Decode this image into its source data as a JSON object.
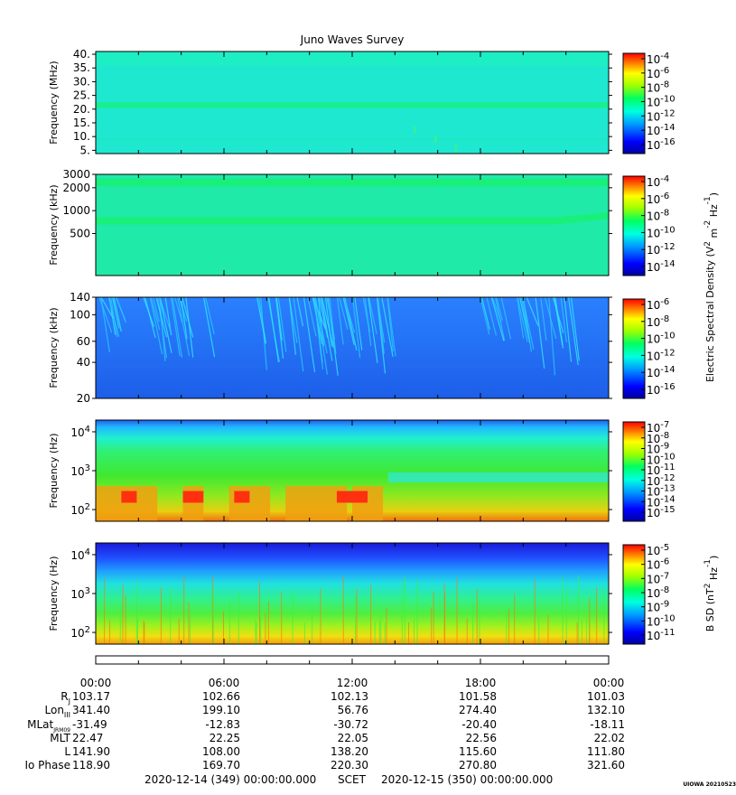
{
  "title": "Juno Waves Survey",
  "colors": {
    "background": "#1ee6de",
    "low": "#1f5af0",
    "emission": "#18f08c",
    "intense": "#ff3010"
  },
  "chart_data": [
    {
      "type": "heatmap",
      "name": "hfwbr-high",
      "ylabel": "Frequency (MHz)",
      "yscale": "linear",
      "ylim": [
        3.8,
        41
      ],
      "yticks": [
        {
          "value": 40,
          "label": "40."
        },
        {
          "value": 35,
          "label": "35."
        },
        {
          "value": 30,
          "label": "30."
        },
        {
          "value": 25,
          "label": "25."
        },
        {
          "value": 20,
          "label": "20."
        },
        {
          "value": 15,
          "label": "15."
        },
        {
          "value": 10,
          "label": "10."
        },
        {
          "value": 5,
          "label": "5."
        }
      ],
      "colorbar": {
        "ticks": [
          {
            "base": "10",
            "exp": "-4"
          },
          {
            "base": "10",
            "exp": "-6"
          },
          {
            "base": "10",
            "exp": "-8"
          },
          {
            "base": "10",
            "exp": "-10"
          },
          {
            "base": "10",
            "exp": "-12"
          },
          {
            "base": "10",
            "exp": "-14"
          },
          {
            "base": "10",
            "exp": "-16"
          }
        ],
        "label": ""
      }
    },
    {
      "type": "heatmap",
      "name": "hfwbr-low",
      "ylabel": "Frequency (kHz)",
      "yscale": "log",
      "ylim": [
        140,
        3000
      ],
      "yticks": [
        {
          "value": 3000,
          "label": "3000"
        },
        {
          "value": 2000,
          "label": "2000"
        },
        {
          "value": 1000,
          "label": "1000"
        },
        {
          "value": 500,
          "label": "500"
        }
      ],
      "colorbar": {
        "ticks": [
          {
            "base": "10",
            "exp": "-4"
          },
          {
            "base": "10",
            "exp": "-6"
          },
          {
            "base": "10",
            "exp": "-8"
          },
          {
            "base": "10",
            "exp": "-10"
          },
          {
            "base": "10",
            "exp": "-12"
          },
          {
            "base": "10",
            "exp": "-14"
          }
        ],
        "label": ""
      }
    },
    {
      "type": "heatmap",
      "name": "lfr-high",
      "ylabel": "Frequency (kHz)",
      "yscale": "log",
      "ylim": [
        20,
        140
      ],
      "yticks": [
        {
          "value": 140,
          "label": "140"
        },
        {
          "value": 100,
          "label": "100"
        },
        {
          "value": 60,
          "label": "60"
        },
        {
          "value": 40,
          "label": "40"
        },
        {
          "value": 20,
          "label": "20"
        }
      ],
      "colorbar": {
        "ticks": [
          {
            "base": "10",
            "exp": "-6"
          },
          {
            "base": "10",
            "exp": "-8"
          },
          {
            "base": "10",
            "exp": "-10"
          },
          {
            "base": "10",
            "exp": "-12"
          },
          {
            "base": "10",
            "exp": "-14"
          },
          {
            "base": "10",
            "exp": "-16"
          }
        ],
        "label_main": "Electric Spectral Density (V",
        "label_sup1": "2",
        "label_mid": " m",
        "label_sup2": "-2",
        "label_mid2": " Hz",
        "label_sup3": "-1",
        "label_end": ")"
      }
    },
    {
      "type": "heatmap",
      "name": "lfr-low",
      "ylabel": "Frequency (Hz)",
      "yscale": "log",
      "ylim": [
        50,
        20000
      ],
      "yticks": [
        {
          "value": 10000,
          "base": "10",
          "exp": "4"
        },
        {
          "value": 1000,
          "base": "10",
          "exp": "3"
        },
        {
          "value": 100,
          "base": "10",
          "exp": "2"
        }
      ],
      "colorbar": {
        "ticks": [
          {
            "base": "10",
            "exp": "-7"
          },
          {
            "base": "10",
            "exp": "-8"
          },
          {
            "base": "10",
            "exp": "-9"
          },
          {
            "base": "10",
            "exp": "-10"
          },
          {
            "base": "10",
            "exp": "-11"
          },
          {
            "base": "10",
            "exp": "-12"
          },
          {
            "base": "10",
            "exp": "-13"
          },
          {
            "base": "10",
            "exp": "-14"
          },
          {
            "base": "10",
            "exp": "-15"
          }
        ],
        "label": ""
      }
    },
    {
      "type": "heatmap",
      "name": "magnetic",
      "ylabel": "Frequency (Hz)",
      "yscale": "log",
      "ylim": [
        50,
        20000
      ],
      "yticks": [
        {
          "value": 10000,
          "base": "10",
          "exp": "4"
        },
        {
          "value": 1000,
          "base": "10",
          "exp": "3"
        },
        {
          "value": 100,
          "base": "10",
          "exp": "2"
        }
      ],
      "colorbar": {
        "ticks": [
          {
            "base": "10",
            "exp": "-5"
          },
          {
            "base": "10",
            "exp": "-6"
          },
          {
            "base": "10",
            "exp": "-7"
          },
          {
            "base": "10",
            "exp": "-8"
          },
          {
            "base": "10",
            "exp": "-9"
          },
          {
            "base": "10",
            "exp": "-10"
          },
          {
            "base": "10",
            "exp": "-11"
          }
        ],
        "label_main": "B SD (nT",
        "label_sup1": "2",
        "label_mid": " Hz",
        "label_sup2": "-1",
        "label_end": ")"
      }
    }
  ],
  "time_axis": {
    "labels": [
      "00:00",
      "06:00",
      "12:00",
      "18:00",
      "00:00"
    ]
  },
  "ephemeris": {
    "rows": [
      {
        "label": "R",
        "sub": "J",
        "values": [
          "103.17",
          "102.66",
          "102.13",
          "101.58",
          "101.03"
        ]
      },
      {
        "label": "Lon",
        "sub": "III",
        "values": [
          "341.40",
          "199.10",
          "56.76",
          "274.40",
          "132.10"
        ]
      },
      {
        "label": "MLat",
        "sub": "JRM09",
        "values": [
          "-31.49",
          "-12.83",
          "-30.72",
          "-20.40",
          "-18.11"
        ]
      },
      {
        "label": "MLT",
        "sub": "",
        "values": [
          "22.47",
          "22.25",
          "22.05",
          "22.56",
          "22.02"
        ]
      },
      {
        "label": "L",
        "sub": "",
        "values": [
          "141.90",
          "108.00",
          "138.20",
          "115.60",
          "111.80"
        ]
      },
      {
        "label": "Io Phase",
        "sub": "",
        "values": [
          "118.90",
          "169.70",
          "220.30",
          "270.80",
          "321.60"
        ]
      }
    ]
  },
  "footer": {
    "start": "2020-12-14 (349) 00:00:00.000",
    "scet": "SCET",
    "end": "2020-12-15 (350) 00:00:00.000",
    "credit": "UIOWA 20210523"
  }
}
